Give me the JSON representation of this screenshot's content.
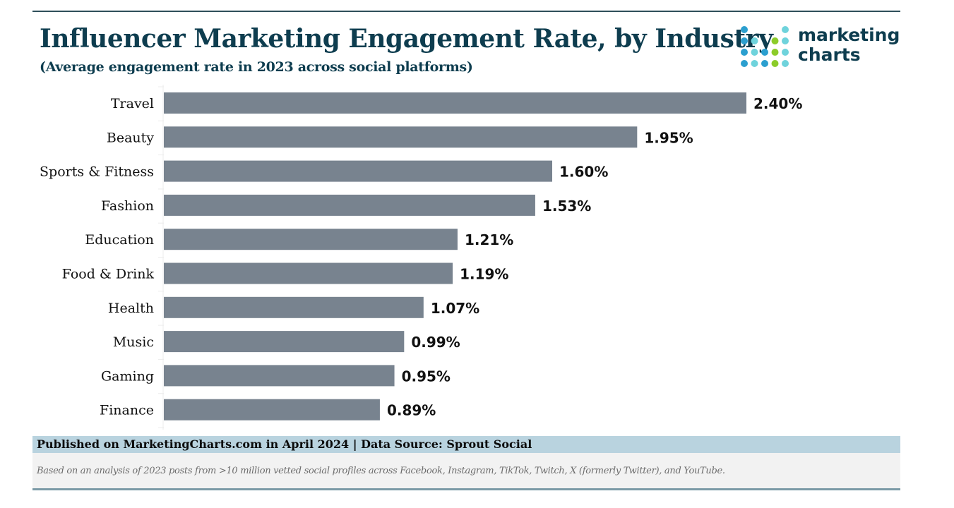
{
  "header": {
    "title": "Influencer Marketing Engagement Rate, by Industry",
    "subtitle": "(Average engagement rate in 2023 across social platforms)"
  },
  "logo": {
    "line1": "marketing",
    "line2": "charts",
    "colors": {
      "blue": "#2b9fcf",
      "teal": "#6fd3dc",
      "green": "#8ccc2a",
      "text": "#0e3d4f"
    }
  },
  "colors": {
    "bar": "#78838f",
    "title": "#0e3d4f",
    "footer_bar": "#b9d3df",
    "footer_note_bg": "#f2f2f2"
  },
  "chart_data": {
    "type": "bar",
    "orientation": "horizontal",
    "title": "Influencer Marketing Engagement Rate, by Industry",
    "subtitle": "(Average engagement rate in 2023 across social platforms)",
    "xlabel": "",
    "ylabel": "",
    "unit": "%",
    "categories": [
      "Travel",
      "Beauty",
      "Sports & Fitness",
      "Fashion",
      "Education",
      "Food & Drink",
      "Health",
      "Music",
      "Gaming",
      "Finance"
    ],
    "values": [
      2.4,
      1.95,
      1.6,
      1.53,
      1.21,
      1.19,
      1.07,
      0.99,
      0.95,
      0.89
    ],
    "value_labels": [
      "2.40%",
      "1.95%",
      "1.60%",
      "1.53%",
      "1.21%",
      "1.19%",
      "1.07%",
      "0.99%",
      "0.95%",
      "0.89%"
    ],
    "xlim": [
      0,
      2.4
    ],
    "grid": false,
    "legend": "none"
  },
  "footer": {
    "source": "Published on MarketingCharts.com in April 2024 | Data Source: Sprout Social",
    "note": "Based on an analysis of 2023 posts from >10 million vetted social profiles across Facebook, Instagram, TikTok, Twitch, X (formerly Twitter), and YouTube."
  }
}
